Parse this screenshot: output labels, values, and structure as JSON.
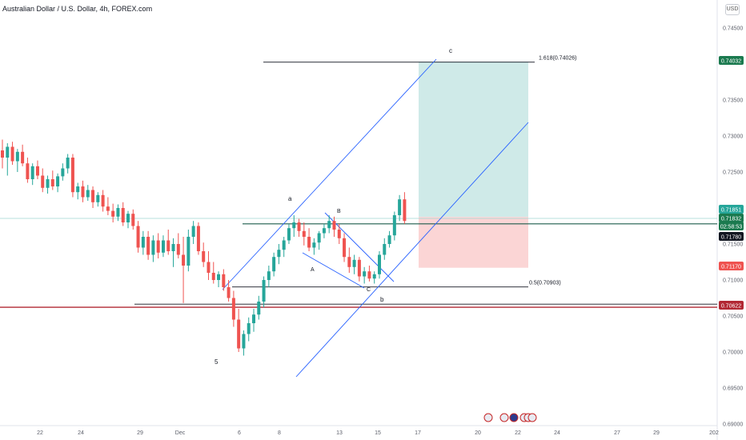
{
  "header": {
    "title": "Australian Dollar / U.S. Dollar, 4h, FOREX.com",
    "currency": "USD"
  },
  "colors": {
    "bull": "#26a69a",
    "bear": "#ef5350",
    "channel": "#2962ff",
    "profit_zone": "#cfeae8",
    "loss_zone": "#fbd5d5",
    "support": "#b22833",
    "current_price": "#1b7a4f"
  },
  "chart_data": {
    "type": "candlestick",
    "symbol": "AUDUSD",
    "timeframe": "4h",
    "y_ticks": [
      "0.74500",
      "0.73500",
      "0.73000",
      "0.72500",
      "0.71500",
      "0.71000",
      "0.70500",
      "0.70000",
      "0.69500",
      "0.69000"
    ],
    "y_tick_values": [
      0.745,
      0.735,
      0.73,
      0.725,
      0.715,
      0.71,
      0.705,
      0.7,
      0.695,
      0.69
    ],
    "ylim": [
      0.6895,
      0.7488
    ],
    "x_ticks": [
      "22",
      "24",
      "29",
      "Dec",
      "6",
      "8",
      "13",
      "15",
      "17",
      "20",
      "22",
      "24",
      "27",
      "29",
      "202"
    ],
    "price_labels": [
      {
        "value": 0.74032,
        "text": "0.74032",
        "color": "#1b7a4f"
      },
      {
        "value": 0.71851,
        "text": "0.71851",
        "color": "#26a69a"
      },
      {
        "value": 0.71832,
        "text": "0.71832",
        "color": "#1b7a4f"
      },
      {
        "value": 0.7177,
        "text": "02:58:53",
        "color": "#1b7a4f"
      },
      {
        "value": 0.7178,
        "text": "0.71780",
        "color": "#131722"
      },
      {
        "value": 0.7117,
        "text": "0.71170",
        "color": "#ef5350"
      },
      {
        "value": 0.70622,
        "text": "0.70622",
        "color": "#b22833"
      }
    ],
    "fib_levels": [
      {
        "label": "1.618(0.74026)",
        "value": 0.74026
      },
      {
        "label": "0.5(0.70903)",
        "value": 0.70903
      }
    ],
    "horizontal_levels": [
      0.7178,
      0.70622,
      0.70665
    ],
    "position": {
      "type": "long",
      "entry": 0.71832,
      "target": 0.74032,
      "stop": 0.7117
    },
    "wave_labels": [
      "5",
      "a",
      "A",
      "B",
      "C",
      "b",
      "c"
    ],
    "ohlc": [
      [
        0.728,
        0.7295,
        0.7255,
        0.727
      ],
      [
        0.727,
        0.729,
        0.7245,
        0.7285
      ],
      [
        0.7285,
        0.7292,
        0.726,
        0.7265
      ],
      [
        0.7265,
        0.7282,
        0.725,
        0.7278
      ],
      [
        0.7278,
        0.7288,
        0.7258,
        0.7262
      ],
      [
        0.7262,
        0.727,
        0.7235,
        0.724
      ],
      [
        0.724,
        0.7262,
        0.7232,
        0.7258
      ],
      [
        0.7258,
        0.7266,
        0.724,
        0.7245
      ],
      [
        0.7245,
        0.7255,
        0.7222,
        0.7228
      ],
      [
        0.7228,
        0.7245,
        0.722,
        0.724
      ],
      [
        0.724,
        0.7252,
        0.7225,
        0.723
      ],
      [
        0.723,
        0.7248,
        0.7222,
        0.7244
      ],
      [
        0.7244,
        0.7262,
        0.7238,
        0.7255
      ],
      [
        0.7255,
        0.7275,
        0.7248,
        0.727
      ],
      [
        0.727,
        0.7275,
        0.7215,
        0.7222
      ],
      [
        0.7222,
        0.7235,
        0.7212,
        0.723
      ],
      [
        0.723,
        0.7238,
        0.7208,
        0.7215
      ],
      [
        0.7215,
        0.7232,
        0.721,
        0.7225
      ],
      [
        0.7225,
        0.723,
        0.72,
        0.7208
      ],
      [
        0.7208,
        0.7222,
        0.7202,
        0.7218
      ],
      [
        0.7218,
        0.7225,
        0.7195,
        0.7202
      ],
      [
        0.7202,
        0.7215,
        0.719,
        0.7196
      ],
      [
        0.7196,
        0.7206,
        0.718,
        0.7188
      ],
      [
        0.7188,
        0.7205,
        0.7182,
        0.72
      ],
      [
        0.72,
        0.7208,
        0.7175,
        0.718
      ],
      [
        0.718,
        0.7196,
        0.7172,
        0.7192
      ],
      [
        0.7192,
        0.7198,
        0.717,
        0.7175
      ],
      [
        0.7175,
        0.7182,
        0.7138,
        0.7145
      ],
      [
        0.7145,
        0.7168,
        0.7135,
        0.716
      ],
      [
        0.716,
        0.7168,
        0.7128,
        0.7135
      ],
      [
        0.7135,
        0.7162,
        0.7125,
        0.7155
      ],
      [
        0.7155,
        0.7165,
        0.713,
        0.7138
      ],
      [
        0.7138,
        0.7162,
        0.7132,
        0.7155
      ],
      [
        0.7155,
        0.717,
        0.7135,
        0.714
      ],
      [
        0.714,
        0.7158,
        0.7118,
        0.715
      ],
      [
        0.715,
        0.7165,
        0.713,
        0.7135
      ],
      [
        0.7135,
        0.716,
        0.7068,
        0.712
      ],
      [
        0.712,
        0.717,
        0.7112,
        0.716
      ],
      [
        0.716,
        0.7182,
        0.715,
        0.7175
      ],
      [
        0.7175,
        0.718,
        0.7135,
        0.714
      ],
      [
        0.714,
        0.7152,
        0.7118,
        0.7125
      ],
      [
        0.7125,
        0.714,
        0.71,
        0.711
      ],
      [
        0.711,
        0.7125,
        0.7095,
        0.71
      ],
      [
        0.71,
        0.7112,
        0.709,
        0.7108
      ],
      [
        0.7108,
        0.7115,
        0.7085,
        0.709
      ],
      [
        0.709,
        0.71,
        0.707,
        0.7075
      ],
      [
        0.7075,
        0.7085,
        0.7035,
        0.7045
      ],
      [
        0.7045,
        0.706,
        0.7,
        0.7005
      ],
      [
        0.7005,
        0.703,
        0.6995,
        0.7025
      ],
      [
        0.7025,
        0.7048,
        0.7015,
        0.704
      ],
      [
        0.704,
        0.706,
        0.7028,
        0.7052
      ],
      [
        0.7052,
        0.7078,
        0.7045,
        0.707
      ],
      [
        0.707,
        0.7105,
        0.7062,
        0.71
      ],
      [
        0.71,
        0.712,
        0.709,
        0.7112
      ],
      [
        0.7112,
        0.7138,
        0.7105,
        0.7132
      ],
      [
        0.7132,
        0.715,
        0.7122,
        0.7142
      ],
      [
        0.7142,
        0.716,
        0.7132,
        0.7155
      ],
      [
        0.7155,
        0.7178,
        0.715,
        0.7172
      ],
      [
        0.7172,
        0.719,
        0.716,
        0.718
      ],
      [
        0.718,
        0.7185,
        0.716,
        0.7168
      ],
      [
        0.7168,
        0.718,
        0.7148,
        0.716
      ],
      [
        0.716,
        0.7172,
        0.714,
        0.7145
      ],
      [
        0.7145,
        0.7158,
        0.7135,
        0.7152
      ],
      [
        0.7152,
        0.7168,
        0.7142,
        0.7165
      ],
      [
        0.7165,
        0.7178,
        0.7158,
        0.7172
      ],
      [
        0.7172,
        0.719,
        0.7165,
        0.7182
      ],
      [
        0.7182,
        0.7188,
        0.716,
        0.717
      ],
      [
        0.717,
        0.7178,
        0.715,
        0.7158
      ],
      [
        0.7158,
        0.7165,
        0.7125,
        0.7132
      ],
      [
        0.7132,
        0.7145,
        0.711,
        0.7118
      ],
      [
        0.7118,
        0.7135,
        0.7108,
        0.7128
      ],
      [
        0.7128,
        0.7132,
        0.7098,
        0.7105
      ],
      [
        0.7105,
        0.7118,
        0.7095,
        0.7112
      ],
      [
        0.7112,
        0.712,
        0.7098,
        0.7102
      ],
      [
        0.7102,
        0.7112,
        0.7095,
        0.7108
      ],
      [
        0.7108,
        0.714,
        0.7102,
        0.7135
      ],
      [
        0.7135,
        0.7158,
        0.7128,
        0.715
      ],
      [
        0.715,
        0.7168,
        0.7145,
        0.7162
      ],
      [
        0.7162,
        0.7195,
        0.7155,
        0.719
      ],
      [
        0.719,
        0.7218,
        0.7182,
        0.7212
      ],
      [
        0.7212,
        0.7222,
        0.7178,
        0.7182
      ]
    ]
  }
}
